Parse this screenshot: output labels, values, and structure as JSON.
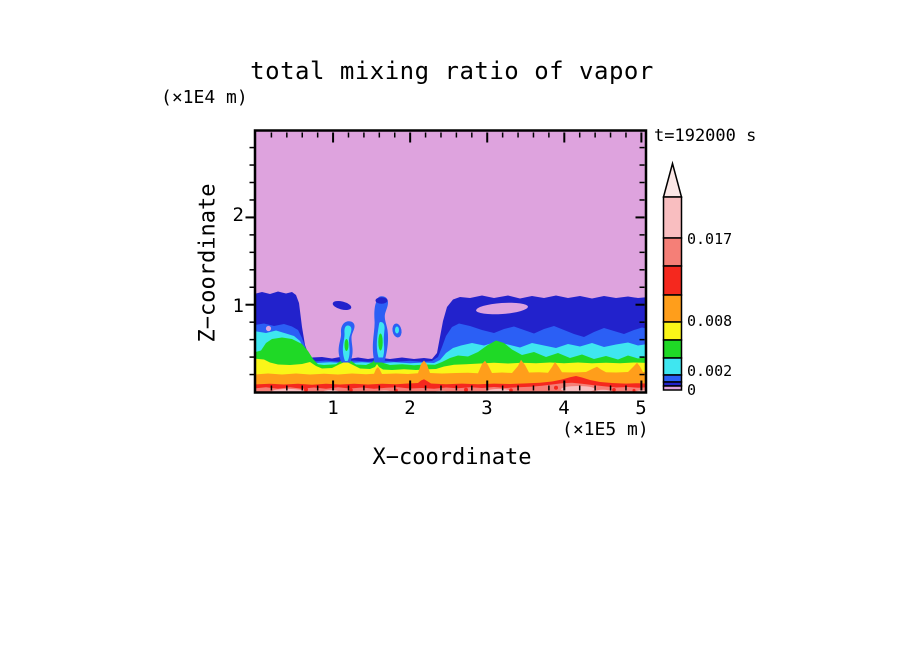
{
  "figure": {
    "title": "total mixing ratio of vapor",
    "timestamp": "t=192000 s",
    "z_axis_unit": "(×1E4 m)",
    "x_axis": {
      "title": "X−coordinate",
      "unit": "(×1E5 m)",
      "tick_labels": [
        "1",
        "2",
        "3",
        "4",
        "5"
      ]
    },
    "z_axis": {
      "title": "Z−coordinate",
      "tick_labels": [
        "1",
        "2"
      ]
    },
    "colorbar": {
      "labels": [
        "0.017",
        "0.008",
        "0.002",
        "0"
      ],
      "has_overflow_arrow": true
    }
  },
  "chart_data": {
    "type": "filled_contour",
    "title": "total mixing ratio of vapor",
    "annotation": "t=192000 s",
    "xlabel": "X−coordinate",
    "x_unit": "×1E5 m",
    "x_range": [
      0,
      5.06
    ],
    "x_major_ticks": [
      1,
      2,
      3,
      4,
      5
    ],
    "zlabel": "Z−coordinate",
    "z_unit": "×1E4 m",
    "z_range": [
      0,
      2.99
    ],
    "z_major_ticks": [
      1,
      2
    ],
    "labeled_levels": [
      0,
      0.002,
      0.008,
      0.017
    ],
    "colorbar_segments_low_to_high": [
      "plum",
      "navy",
      "blue",
      "cyan",
      "green",
      "yellow",
      "orange",
      "red",
      "salmon",
      "pink",
      "overflow"
    ],
    "colors": {
      "plum": "#DEA3DE",
      "navy": "#2222CC",
      "blue": "#2B5FF5",
      "cyan": "#3FE6F0",
      "green": "#1FD926",
      "yellow": "#FAF518",
      "orange": "#FF9E1B",
      "red": "#F5281E",
      "salmon": "#F57F77",
      "pink": "#F9BEC0",
      "overflow": "#FBE7E6",
      "axis": "#000000"
    },
    "field": {
      "description": "Vapor mixing ratio is highest at the surface (pink/salmon/red layers) and decreases with height to near zero (plum) above z~1.1e4 m. Between x~0.7e5 and 2.6e5 m the moist layer is suppressed to z~0.4e4 m except for two narrow moist plumes.",
      "x_samples_1e5m": [
        0.25,
        1.0,
        1.75,
        2.4,
        3.0,
        3.75,
        4.5
      ],
      "band_top_z_1e4m": {
        "navy": [
          1.14,
          0.41,
          0.4,
          0.95,
          1.09,
          1.1,
          1.08
        ],
        "blue": [
          0.77,
          0.37,
          0.36,
          0.72,
          0.74,
          0.73,
          0.76
        ],
        "cyan": [
          0.68,
          0.35,
          0.34,
          0.6,
          0.56,
          0.53,
          0.56
        ],
        "green": [
          0.62,
          0.33,
          0.32,
          0.46,
          0.5,
          0.42,
          0.44
        ],
        "yellow": [
          0.39,
          0.3,
          0.28,
          0.34,
          0.33,
          0.33,
          0.34
        ],
        "orange": [
          0.21,
          0.22,
          0.23,
          0.24,
          0.23,
          0.24,
          0.23
        ],
        "red": [
          0.09,
          0.1,
          0.11,
          0.1,
          0.11,
          0.1,
          0.1
        ],
        "salmon": [
          0.05,
          0.06,
          0.05,
          0.06,
          0.05,
          0.09,
          0.05
        ]
      },
      "plumes": [
        {
          "x_1e5m": 1.16,
          "top_z_1e4m": 0.8
        },
        {
          "x_1e5m": 1.59,
          "top_z_1e4m": 1.09
        }
      ]
    }
  }
}
